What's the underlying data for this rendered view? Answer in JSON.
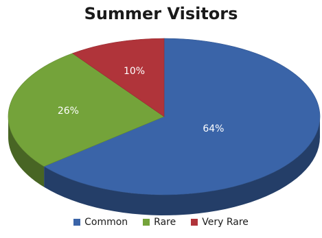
{
  "chart_data": {
    "type": "pie",
    "title": "Summer Visitors",
    "slices": [
      {
        "label": "Common",
        "value": 64,
        "display": "64%",
        "color": "#3A64A8"
      },
      {
        "label": "Rare",
        "value": 26,
        "display": "26%",
        "color": "#74A33A"
      },
      {
        "label": "Very Rare",
        "value": 10,
        "display": "10%",
        "color": "#B0343A"
      }
    ],
    "legend_position": "bottom",
    "style": "3d"
  }
}
